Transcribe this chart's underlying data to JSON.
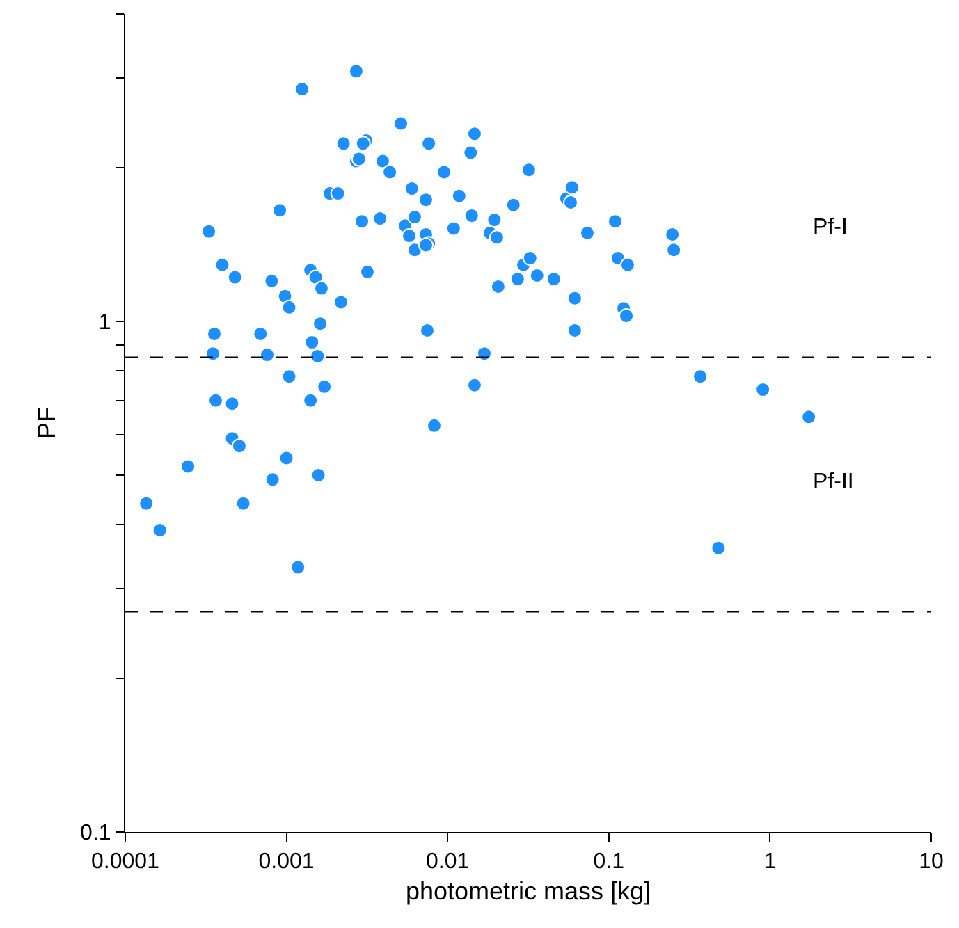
{
  "chart_data": {
    "type": "scatter",
    "xlabel": "photometric mass [kg]",
    "ylabel": "PF",
    "log": "xy",
    "marker": "circle",
    "xlim": [
      0.0001,
      10
    ],
    "xticks": [
      {
        "value": 0.0001,
        "label": "0.0001"
      },
      {
        "value": 0.001,
        "label": "0.001"
      },
      {
        "value": 0.01,
        "label": "0.01"
      },
      {
        "value": 0.1,
        "label": "0.1"
      },
      {
        "value": 1,
        "label": "1"
      },
      {
        "value": 10,
        "label": "10"
      }
    ],
    "ylim": [
      0.1,
      4
    ],
    "yticks": [
      {
        "value": 0.1,
        "label": "0.1"
      },
      {
        "value": 0.2,
        "label": null
      },
      {
        "value": 0.3,
        "label": null
      },
      {
        "value": 0.4,
        "label": null
      },
      {
        "value": 0.5,
        "label": null
      },
      {
        "value": 0.6,
        "label": null
      },
      {
        "value": 0.7,
        "label": null
      },
      {
        "value": 0.8,
        "label": null
      },
      {
        "value": 0.9,
        "label": null
      },
      {
        "value": 1,
        "label": "1"
      },
      {
        "value": 2,
        "label": null
      },
      {
        "value": 3,
        "label": null
      },
      {
        "value": 4,
        "label": null
      }
    ],
    "ref_lines": [
      {
        "axis": "y",
        "value": 0.85,
        "color": "#000000",
        "line_style": "dashed"
      },
      {
        "axis": "y",
        "value": 0.27,
        "color": "#000000",
        "line_style": "dashed"
      }
    ],
    "annotations": [
      "Pf-I",
      "Pf-II"
    ],
    "series": [
      {
        "color": "#1e8fff",
        "x": [
          0.000135,
          0.000164,
          0.000245,
          0.00033,
          0.00035,
          0.000357,
          0.000364,
          0.0004,
          0.00046,
          0.00046,
          0.00048,
          0.00051,
          0.00054,
          0.00069,
          0.00076,
          0.00082,
          0.00081,
          0.00091,
          0.00098,
          0.001,
          0.00104,
          0.00104,
          0.00118,
          0.00125,
          0.00144,
          0.00141,
          0.00141,
          0.00152,
          0.00158,
          0.00162,
          0.00165,
          0.00172,
          0.00186,
          0.00209,
          0.00218,
          0.00226,
          0.00271,
          0.00271,
          0.00282,
          0.00294,
          0.00312,
          0.00299,
          0.00318,
          0.00381,
          0.00396,
          0.00438,
          0.00513,
          0.00545,
          0.00578,
          0.006,
          0.00625,
          0.00625,
          0.00733,
          0.00733,
          0.00764,
          0.00733,
          0.00748,
          0.00764,
          0.00826,
          0.0095,
          0.0109,
          0.0118,
          0.0139,
          0.0147,
          0.0141,
          0.0147,
          0.0169,
          0.0183,
          0.0195,
          0.0202,
          0.0206,
          0.0256,
          0.0272,
          0.0295,
          0.0319,
          0.0325,
          0.0359,
          0.0456,
          0.0546,
          0.058,
          0.0591,
          0.0615,
          0.0615,
          0.0736,
          0.1096,
          0.114,
          0.1236,
          0.1285,
          0.131,
          0.248,
          0.253,
          0.369,
          0.479,
          0.903,
          1.74,
          0.00156
        ],
        "values": [
          0.44,
          0.39,
          0.52,
          1.5,
          0.865,
          0.945,
          0.7,
          1.29,
          0.69,
          0.59,
          1.22,
          0.57,
          0.44,
          0.945,
          0.86,
          0.49,
          1.2,
          1.65,
          1.12,
          0.54,
          1.065,
          0.78,
          0.33,
          2.85,
          0.91,
          1.26,
          0.7,
          1.22,
          0.5,
          0.99,
          1.16,
          0.745,
          1.78,
          1.78,
          1.09,
          2.23,
          3.09,
          2.06,
          2.08,
          1.57,
          2.26,
          2.23,
          1.25,
          1.59,
          2.06,
          1.96,
          2.44,
          1.54,
          1.47,
          1.82,
          1.38,
          1.6,
          1.73,
          1.48,
          1.42,
          1.41,
          0.96,
          2.23,
          0.625,
          1.96,
          1.52,
          1.76,
          2.14,
          2.33,
          1.61,
          0.75,
          0.865,
          1.49,
          1.58,
          1.46,
          1.17,
          1.69,
          1.21,
          1.29,
          1.98,
          1.33,
          1.23,
          1.21,
          1.74,
          1.71,
          1.83,
          0.96,
          1.11,
          1.49,
          1.57,
          1.33,
          1.06,
          1.025,
          1.29,
          1.48,
          1.38,
          0.78,
          0.36,
          0.735,
          0.65,
          0.855
        ]
      }
    ]
  }
}
